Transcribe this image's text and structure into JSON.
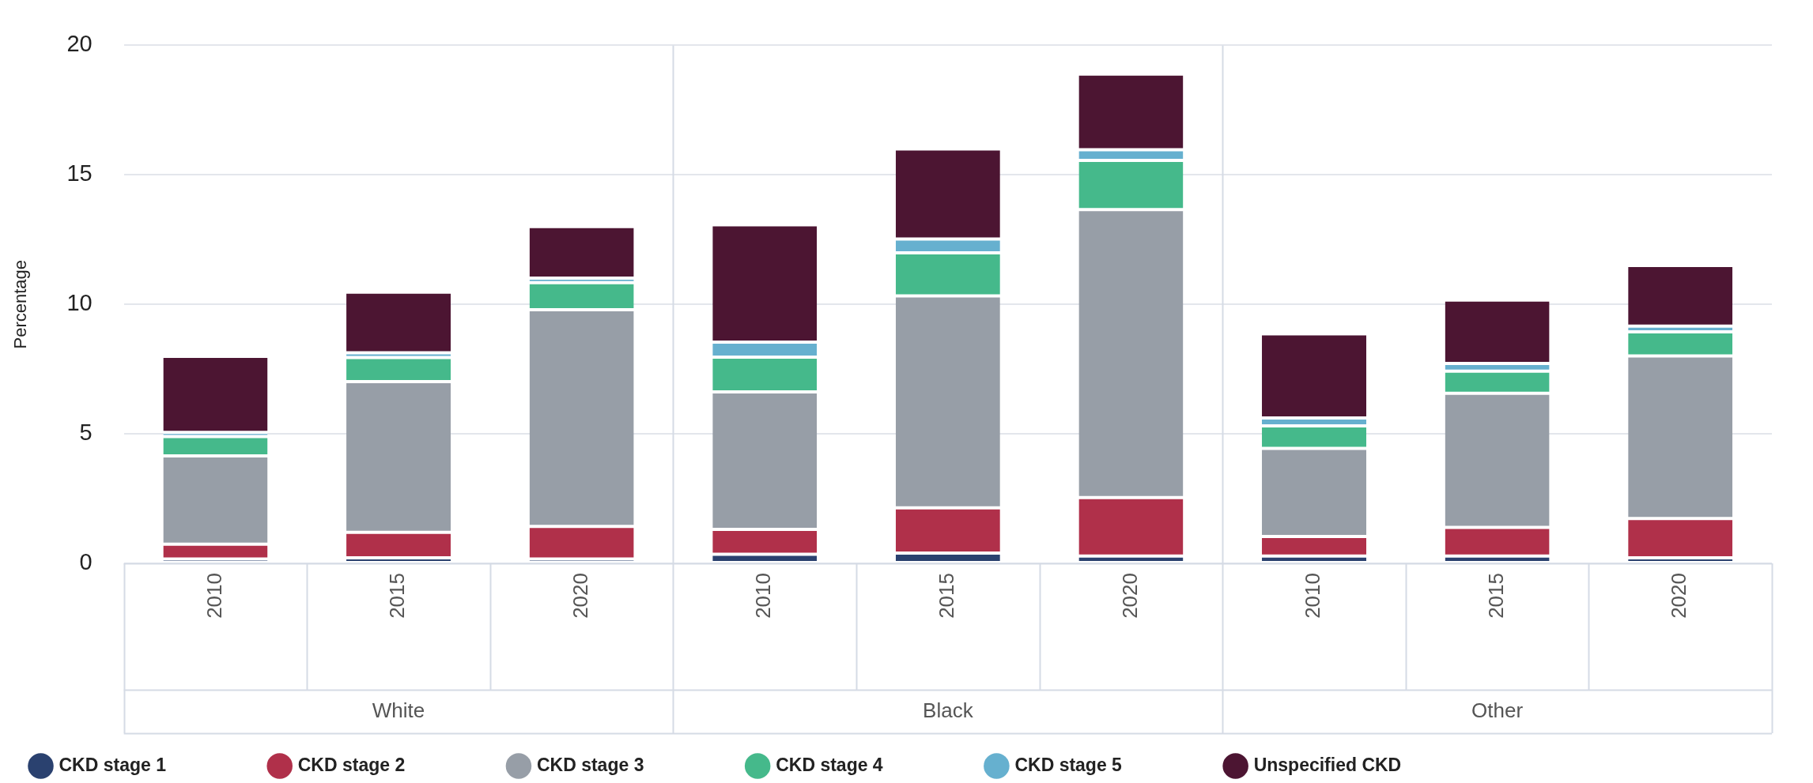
{
  "chart_data": {
    "type": "bar",
    "stacked": true,
    "ylabel": "Percentage",
    "categories": [
      "2010",
      "2015",
      "2020",
      "2010",
      "2015",
      "2020",
      "2010",
      "2015",
      "2020"
    ],
    "annotations": [
      "White",
      "Black",
      "Other"
    ],
    "series": [
      {
        "name": "CKD stage 1",
        "color": "#2a416f",
        "values": [
          0.17,
          0.21,
          0.17,
          0.35,
          0.4,
          0.28,
          0.28,
          0.28,
          0.21
        ]
      },
      {
        "name": "CKD stage 2",
        "color": "#b0304a",
        "values": [
          0.57,
          0.99,
          1.26,
          0.96,
          1.74,
          2.26,
          0.76,
          1.11,
          1.52
        ]
      },
      {
        "name": "CKD stage 3",
        "color": "#979ea7",
        "values": [
          3.41,
          5.82,
          8.36,
          5.31,
          8.19,
          11.12,
          3.4,
          5.18,
          6.28
        ]
      },
      {
        "name": "CKD stage 4",
        "color": "#45b98b",
        "values": [
          0.75,
          0.93,
          1.05,
          1.34,
          1.66,
          1.9,
          0.87,
          0.85,
          0.93
        ]
      },
      {
        "name": "CKD stage 5",
        "color": "#66b0cf",
        "values": [
          0.16,
          0.18,
          0.17,
          0.58,
          0.53,
          0.41,
          0.3,
          0.3,
          0.22
        ]
      },
      {
        "name": "Unspecified CKD",
        "color": "#4c1532",
        "values": [
          2.93,
          2.34,
          1.99,
          4.53,
          3.48,
          2.92,
          3.25,
          2.45,
          2.34
        ]
      }
    ],
    "ylim": [
      0,
      20
    ],
    "yticks": [
      0,
      5,
      10,
      15,
      20
    ],
    "grid": "y",
    "legend": "bottom"
  }
}
